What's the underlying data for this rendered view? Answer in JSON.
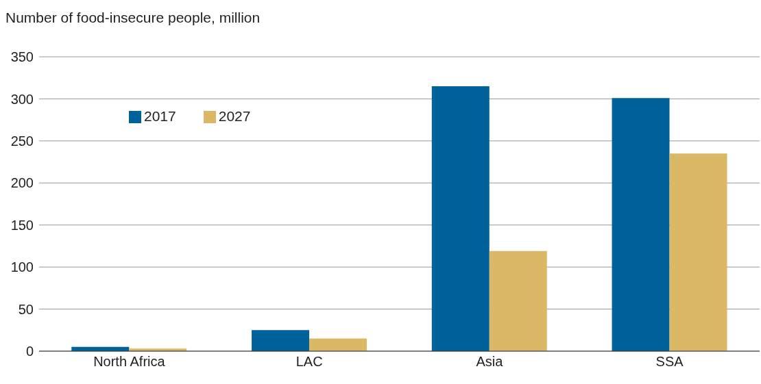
{
  "chart_data": {
    "type": "bar",
    "ylabel": "Number of food-insecure people, million",
    "categories": [
      "North Africa",
      "LAC",
      "Asia",
      "SSA"
    ],
    "series": [
      {
        "name": "2017",
        "color": "#00629b",
        "values": [
          5,
          25,
          315,
          301
        ]
      },
      {
        "name": "2027",
        "color": "#dbb865",
        "values": [
          3,
          15,
          119,
          235
        ]
      }
    ],
    "ylim": [
      0,
      350
    ],
    "yticks": [
      0,
      50,
      100,
      150,
      200,
      250,
      300,
      350
    ],
    "grid": "y",
    "legend": "top left"
  }
}
